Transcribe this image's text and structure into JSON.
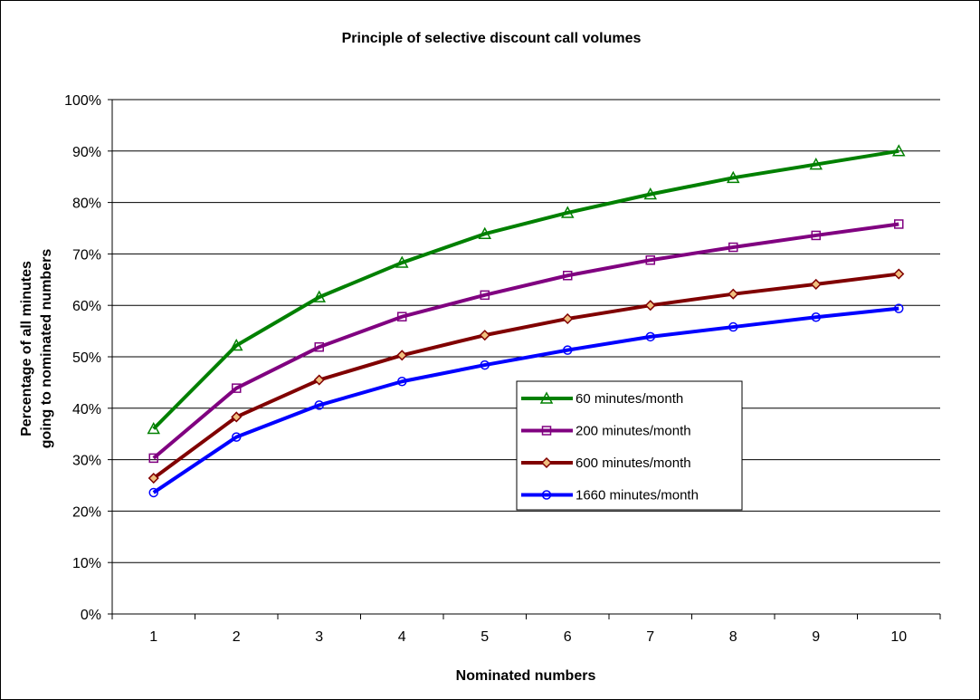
{
  "chart_data": {
    "type": "line",
    "title": "Principle of selective discount call volumes",
    "xlabel": "Nominated numbers",
    "ylabel_line1": "Percentage of all minutes",
    "ylabel_line2": "going to nominated numbers",
    "categories": [
      "1",
      "2",
      "3",
      "4",
      "5",
      "6",
      "7",
      "8",
      "9",
      "10"
    ],
    "ylim": [
      0,
      100
    ],
    "yticks": [
      "0%",
      "10%",
      "20%",
      "30%",
      "40%",
      "50%",
      "60%",
      "70%",
      "80%",
      "90%",
      "100%"
    ],
    "grid": "horizontal",
    "legend_position": "center-right",
    "series": [
      {
        "name": "60 minutes/month",
        "color": "#008000",
        "marker": "triangle",
        "values": [
          36,
          52.2,
          61.6,
          68.3,
          73.9,
          78,
          81.6,
          84.8,
          87.4,
          90
        ]
      },
      {
        "name": "200 minutes/month",
        "color": "#800080",
        "marker": "square",
        "values": [
          30.3,
          43.9,
          51.9,
          57.8,
          62,
          65.8,
          68.8,
          71.3,
          73.6,
          75.8
        ]
      },
      {
        "name": "600 minutes/month",
        "color": "#800000",
        "marker": "diamond",
        "values": [
          26.4,
          38.3,
          45.5,
          50.3,
          54.2,
          57.4,
          60,
          62.2,
          64.1,
          66.1
        ]
      },
      {
        "name": "1660 minutes/month",
        "color": "#0000FF",
        "marker": "circle",
        "values": [
          23.6,
          34.4,
          40.6,
          45.2,
          48.4,
          51.3,
          53.9,
          55.8,
          57.7,
          59.4
        ]
      }
    ]
  }
}
